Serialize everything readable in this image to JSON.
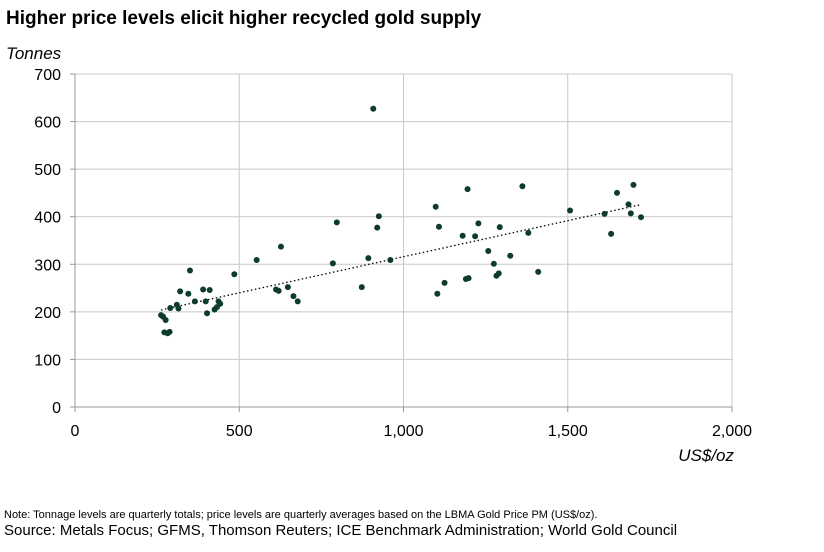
{
  "chart_data": {
    "type": "scatter",
    "title": "Higher price levels elicit higher recycled gold supply",
    "ylabel": "Tonnes",
    "xlabel": "US$/oz",
    "xlim": [
      0,
      2000
    ],
    "ylim": [
      0,
      700
    ],
    "x_ticks": [
      0,
      500,
      1000,
      1500,
      2000
    ],
    "x_tick_labels": [
      "0",
      "500",
      "1,000",
      "1,500",
      "2,000"
    ],
    "y_ticks": [
      0,
      100,
      200,
      300,
      400,
      500,
      600,
      700
    ],
    "y_tick_labels": [
      "0",
      "100",
      "200",
      "300",
      "400",
      "500",
      "600",
      "700"
    ],
    "grid": "vertical and horizontal",
    "trendline": {
      "style": "dotted",
      "x": [
        262,
        1720
      ],
      "y": [
        204,
        425
      ]
    },
    "points": [
      {
        "x": 262,
        "y": 193
      },
      {
        "x": 268,
        "y": 190
      },
      {
        "x": 272,
        "y": 157
      },
      {
        "x": 276,
        "y": 183
      },
      {
        "x": 282,
        "y": 155
      },
      {
        "x": 288,
        "y": 158
      },
      {
        "x": 290,
        "y": 208
      },
      {
        "x": 310,
        "y": 215
      },
      {
        "x": 315,
        "y": 207
      },
      {
        "x": 320,
        "y": 243
      },
      {
        "x": 345,
        "y": 238
      },
      {
        "x": 350,
        "y": 287
      },
      {
        "x": 365,
        "y": 222
      },
      {
        "x": 390,
        "y": 247
      },
      {
        "x": 398,
        "y": 222
      },
      {
        "x": 402,
        "y": 197
      },
      {
        "x": 410,
        "y": 246
      },
      {
        "x": 425,
        "y": 205
      },
      {
        "x": 432,
        "y": 210
      },
      {
        "x": 437,
        "y": 222
      },
      {
        "x": 442,
        "y": 217
      },
      {
        "x": 485,
        "y": 279
      },
      {
        "x": 553,
        "y": 309
      },
      {
        "x": 612,
        "y": 247
      },
      {
        "x": 620,
        "y": 244
      },
      {
        "x": 627,
        "y": 337
      },
      {
        "x": 648,
        "y": 252
      },
      {
        "x": 665,
        "y": 233
      },
      {
        "x": 678,
        "y": 222
      },
      {
        "x": 785,
        "y": 302
      },
      {
        "x": 797,
        "y": 388
      },
      {
        "x": 873,
        "y": 252
      },
      {
        "x": 893,
        "y": 313
      },
      {
        "x": 908,
        "y": 627
      },
      {
        "x": 920,
        "y": 377
      },
      {
        "x": 925,
        "y": 401
      },
      {
        "x": 960,
        "y": 309
      },
      {
        "x": 1098,
        "y": 421
      },
      {
        "x": 1103,
        "y": 238
      },
      {
        "x": 1108,
        "y": 379
      },
      {
        "x": 1125,
        "y": 261
      },
      {
        "x": 1180,
        "y": 360
      },
      {
        "x": 1190,
        "y": 269
      },
      {
        "x": 1195,
        "y": 458
      },
      {
        "x": 1198,
        "y": 271
      },
      {
        "x": 1218,
        "y": 359
      },
      {
        "x": 1228,
        "y": 386
      },
      {
        "x": 1258,
        "y": 328
      },
      {
        "x": 1275,
        "y": 301
      },
      {
        "x": 1283,
        "y": 276
      },
      {
        "x": 1290,
        "y": 281
      },
      {
        "x": 1293,
        "y": 378
      },
      {
        "x": 1325,
        "y": 318
      },
      {
        "x": 1362,
        "y": 464
      },
      {
        "x": 1380,
        "y": 366
      },
      {
        "x": 1410,
        "y": 284
      },
      {
        "x": 1507,
        "y": 413
      },
      {
        "x": 1612,
        "y": 406
      },
      {
        "x": 1632,
        "y": 364
      },
      {
        "x": 1650,
        "y": 450
      },
      {
        "x": 1685,
        "y": 426
      },
      {
        "x": 1692,
        "y": 407
      },
      {
        "x": 1700,
        "y": 467
      },
      {
        "x": 1723,
        "y": 399
      }
    ]
  },
  "footer": {
    "note": "Note: Tonnage levels are quarterly totals; price levels are quarterly averages based on the LBMA Gold Price PM (US$/oz).",
    "source": "Source: Metals Focus; GFMS, Thomson Reuters; ICE Benchmark Administration; World Gold Council"
  },
  "colors": {
    "points": "#0d3b2e",
    "grid": "#c8c8c8",
    "axis": "#999999",
    "trendline": "#000000"
  }
}
